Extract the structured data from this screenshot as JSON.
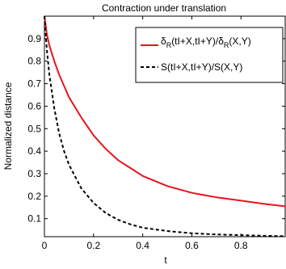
{
  "chart_data": {
    "type": "line",
    "title": "Contraction under translation",
    "xlabel": "t",
    "ylabel": "Normalized distance",
    "xlim": [
      0,
      0.98
    ],
    "ylim": [
      0.02,
      1.0
    ],
    "xticks": [
      0,
      0.2,
      0.4,
      0.6,
      0.8
    ],
    "xtick_labels": [
      "0",
      "0.2",
      "0.4",
      "0.6",
      "0.8"
    ],
    "yticks": [
      0.1,
      0.2,
      0.3,
      0.4,
      0.5,
      0.6,
      0.7,
      0.8,
      0.9
    ],
    "ytick_labels": [
      "0.1",
      "0.2",
      "0.3",
      "0.4",
      "0.5",
      "0.6",
      "0.7",
      "0.8",
      "0.9"
    ],
    "grid": false,
    "legend_position": "top-right",
    "series": [
      {
        "name_prefix": "δ",
        "name_sub1": "R",
        "name_mid": "(tI+X,tI+Y)/δ",
        "name_sub2": "R",
        "name_suffix": "(X,Y)",
        "color": "#e8141c",
        "dash": "solid",
        "x": [
          0,
          0.01,
          0.02,
          0.04,
          0.06,
          0.08,
          0.1,
          0.15,
          0.2,
          0.25,
          0.3,
          0.35,
          0.4,
          0.5,
          0.6,
          0.7,
          0.8,
          0.9,
          0.98
        ],
        "y": [
          1.0,
          0.92,
          0.87,
          0.8,
          0.74,
          0.69,
          0.64,
          0.55,
          0.47,
          0.41,
          0.36,
          0.325,
          0.29,
          0.245,
          0.215,
          0.195,
          0.18,
          0.165,
          0.155
        ]
      },
      {
        "name": "S(tI+X,tI+Y)/S(X,Y)",
        "color": "#000000",
        "dash": "dashed",
        "x": [
          0,
          0.01,
          0.02,
          0.04,
          0.06,
          0.08,
          0.1,
          0.15,
          0.2,
          0.25,
          0.3,
          0.35,
          0.4,
          0.5,
          0.6,
          0.7,
          0.8,
          0.9,
          0.98
        ],
        "y": [
          1.0,
          0.85,
          0.74,
          0.59,
          0.48,
          0.4,
          0.34,
          0.235,
          0.17,
          0.125,
          0.095,
          0.075,
          0.06,
          0.045,
          0.035,
          0.03,
          0.027,
          0.024,
          0.022
        ]
      }
    ]
  }
}
